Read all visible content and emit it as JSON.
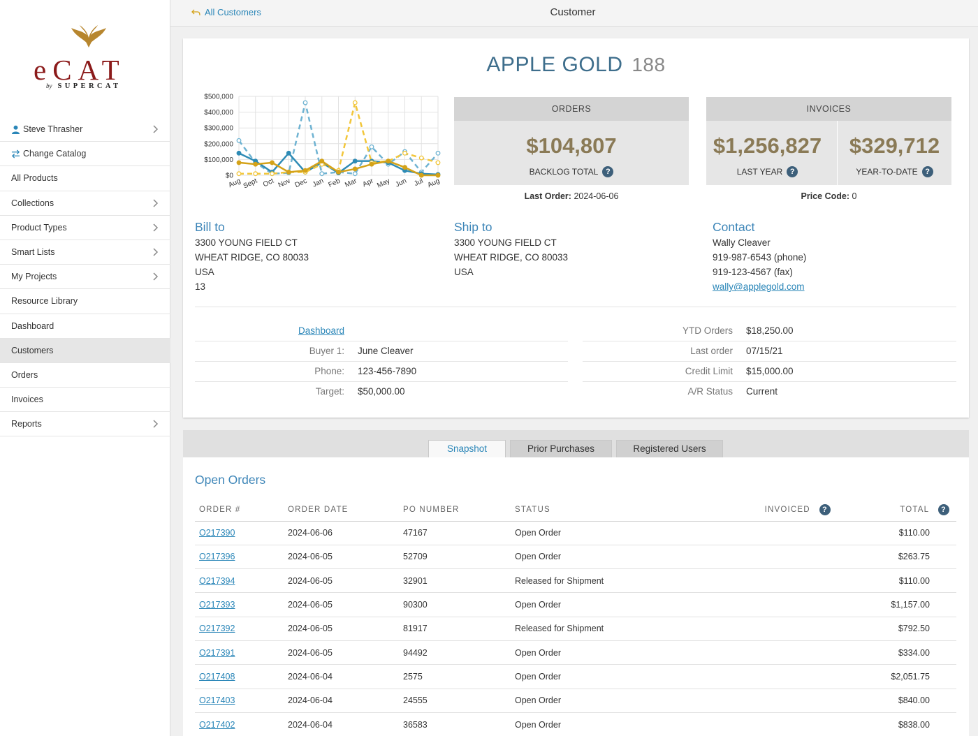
{
  "app": {
    "logo_word": "eCAT",
    "logo_by": "by",
    "logo_brand": "SUPERCAT",
    "brand_color": "#8b1a1a",
    "accent_color": "#2a86b8"
  },
  "sidebar": {
    "items": [
      {
        "label": "Steve Thrasher",
        "icon": "user-icon",
        "chevron": true
      },
      {
        "label": "Change Catalog",
        "icon": "swap-icon",
        "chevron": false
      },
      {
        "label": "All Products",
        "chevron": false
      },
      {
        "label": "Collections",
        "chevron": true
      },
      {
        "label": "Product Types",
        "chevron": true
      },
      {
        "label": "Smart Lists",
        "chevron": true
      },
      {
        "label": "My Projects",
        "chevron": true
      },
      {
        "label": "Resource Library",
        "chevron": false
      },
      {
        "label": "Dashboard",
        "chevron": false
      },
      {
        "label": "Customers",
        "chevron": false,
        "active": true
      },
      {
        "label": "Orders",
        "chevron": false
      },
      {
        "label": "Invoices",
        "chevron": false
      },
      {
        "label": "Reports",
        "chevron": true
      }
    ]
  },
  "topbar": {
    "back_label": "All Customers",
    "title": "Customer"
  },
  "customer": {
    "name": "APPLE GOLD",
    "number": "188"
  },
  "orders_box": {
    "header": "ORDERS",
    "value": "$104,807",
    "label": "BACKLOG TOTAL",
    "last_order_label": "Last Order:",
    "last_order_value": "2024-06-06"
  },
  "invoices_box": {
    "header": "INVOICES",
    "last_year_value": "$1,256,827",
    "last_year_label": "LAST YEAR",
    "ytd_value": "$329,712",
    "ytd_label": "YEAR-TO-DATE",
    "price_code_label": "Price Code:",
    "price_code_value": "0"
  },
  "bill_to": {
    "title": "Bill to",
    "line1": "3300 YOUNG FIELD CT",
    "line2": "WHEAT RIDGE, CO 80033",
    "line3": "USA",
    "line4": "13"
  },
  "ship_to": {
    "title": "Ship to",
    "line1": "3300 YOUNG FIELD CT",
    "line2": "WHEAT RIDGE, CO 80033",
    "line3": "USA"
  },
  "contact": {
    "title": "Contact",
    "name": "Wally Cleaver",
    "phone": "919-987-6543 (phone)",
    "fax": "919-123-4567 (fax)",
    "email": "wally@applegold.com"
  },
  "details_left": {
    "dashboard_link": "Dashboard",
    "rows": [
      {
        "label": "Buyer 1:",
        "value": "June Cleaver"
      },
      {
        "label": "Phone:",
        "value": "123-456-7890"
      },
      {
        "label": "Target:",
        "value": "$50,000.00"
      }
    ]
  },
  "details_right": {
    "rows": [
      {
        "label": "YTD Orders",
        "value": "$18,250.00"
      },
      {
        "label": "Last order",
        "value": "07/15/21"
      },
      {
        "label": "Credit Limit",
        "value": "$15,000.00"
      },
      {
        "label": "A/R Status",
        "value": "Current"
      }
    ]
  },
  "tabs": [
    {
      "label": "Snapshot",
      "active": true
    },
    {
      "label": "Prior Purchases",
      "active": false
    },
    {
      "label": "Registered Users",
      "active": false
    }
  ],
  "open_orders": {
    "title": "Open Orders",
    "columns": [
      "ORDER #",
      "ORDER DATE",
      "PO NUMBER",
      "STATUS",
      "INVOICED",
      "TOTAL"
    ],
    "rows": [
      {
        "order": "O217390",
        "date": "2024-06-06",
        "po": "47167",
        "status": "Open Order",
        "invoiced": "",
        "total": "$110.00"
      },
      {
        "order": "O217396",
        "date": "2024-06-05",
        "po": "52709",
        "status": "Open Order",
        "invoiced": "",
        "total": "$263.75"
      },
      {
        "order": "O217394",
        "date": "2024-06-05",
        "po": "32901",
        "status": "Released for Shipment",
        "invoiced": "",
        "total": "$110.00"
      },
      {
        "order": "O217393",
        "date": "2024-06-05",
        "po": "90300",
        "status": "Open Order",
        "invoiced": "",
        "total": "$1,157.00"
      },
      {
        "order": "O217392",
        "date": "2024-06-05",
        "po": "81917",
        "status": "Released for Shipment",
        "invoiced": "",
        "total": "$792.50"
      },
      {
        "order": "O217391",
        "date": "2024-06-05",
        "po": "94492",
        "status": "Open Order",
        "invoiced": "",
        "total": "$334.00"
      },
      {
        "order": "O217408",
        "date": "2024-06-04",
        "po": "2575",
        "status": "Open Order",
        "invoiced": "",
        "total": "$2,051.75"
      },
      {
        "order": "O217403",
        "date": "2024-06-04",
        "po": "24555",
        "status": "Open Order",
        "invoiced": "",
        "total": "$840.00"
      },
      {
        "order": "O217402",
        "date": "2024-06-04",
        "po": "36583",
        "status": "Open Order",
        "invoiced": "",
        "total": "$838.00"
      }
    ]
  },
  "chart_data": {
    "type": "line",
    "categories": [
      "Aug",
      "Sept",
      "Oct",
      "Nov",
      "Dec",
      "Jan",
      "Feb",
      "Mar",
      "Apr",
      "May",
      "Jun",
      "Jul",
      "Aug"
    ],
    "ytick_labels": [
      "$0",
      "$100,000",
      "$200,000",
      "$300,000",
      "$400,000",
      "$500,000"
    ],
    "ylim": [
      0,
      500000
    ],
    "grid": true,
    "series": [
      {
        "values": [
          220000,
          80000,
          10000,
          15000,
          460000,
          10000,
          20000,
          10000,
          180000,
          70000,
          150000,
          20000,
          140000
        ],
        "color": "#6fb3d2",
        "style": "dashed"
      },
      {
        "values": [
          140000,
          90000,
          20000,
          140000,
          20000,
          80000,
          15000,
          90000,
          90000,
          80000,
          30000,
          10000,
          5000
        ],
        "color": "#2e8bb5",
        "style": "solid"
      },
      {
        "values": [
          10000,
          10000,
          10000,
          20000,
          20000,
          70000,
          30000,
          460000,
          80000,
          90000,
          140000,
          110000,
          80000
        ],
        "color": "#f2c63a",
        "style": "dashed"
      },
      {
        "values": [
          80000,
          70000,
          80000,
          20000,
          30000,
          90000,
          20000,
          40000,
          70000,
          90000,
          50000,
          0,
          0
        ],
        "color": "#d4a218",
        "style": "solid"
      }
    ]
  }
}
